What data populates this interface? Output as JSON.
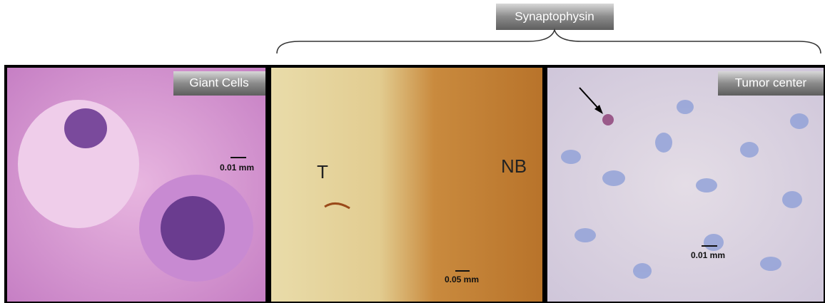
{
  "header": {
    "label": "Synaptophysin"
  },
  "panels": [
    {
      "label": "Giant Cells",
      "scale_bar": "0.01 mm"
    },
    {
      "annotations": [
        "T",
        "NB"
      ],
      "scale_bar": "0.05 mm"
    },
    {
      "label": "Tumor center",
      "scale_bar": "0.01 mm"
    }
  ]
}
